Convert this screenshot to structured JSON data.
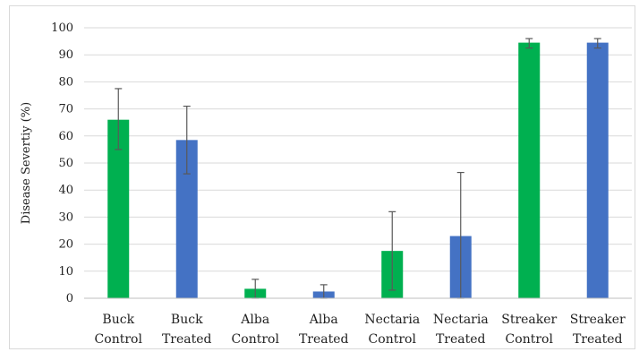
{
  "chart_data": {
    "type": "bar",
    "title": "",
    "xlabel": "",
    "ylabel": "Disease Severtiy (%)",
    "ylim": [
      0,
      100
    ],
    "yticks": [
      0,
      10,
      20,
      30,
      40,
      50,
      60,
      70,
      80,
      90,
      100
    ],
    "grid": true,
    "legend": "none",
    "categories": [
      [
        "Buck",
        "Control"
      ],
      [
        "Buck",
        "Treated"
      ],
      [
        "Alba",
        "Control"
      ],
      [
        "Alba",
        "Treated"
      ],
      [
        "Nectaria",
        "Control"
      ],
      [
        "Nectaria",
        "Treated"
      ],
      [
        "Streaker",
        "Control"
      ],
      [
        "Streaker",
        "Treated"
      ]
    ],
    "values": [
      66,
      58.5,
      3.5,
      2.5,
      17.5,
      23,
      94.5,
      94.5
    ],
    "error_low": [
      55,
      46,
      0,
      0,
      3,
      0,
      92.5,
      92.5
    ],
    "error_high": [
      77.5,
      71,
      7,
      5,
      32,
      46.5,
      96,
      96
    ],
    "colors": [
      "#00b050",
      "#4472c4",
      "#00b050",
      "#4472c4",
      "#00b050",
      "#4472c4",
      "#00b050",
      "#4472c4"
    ]
  }
}
